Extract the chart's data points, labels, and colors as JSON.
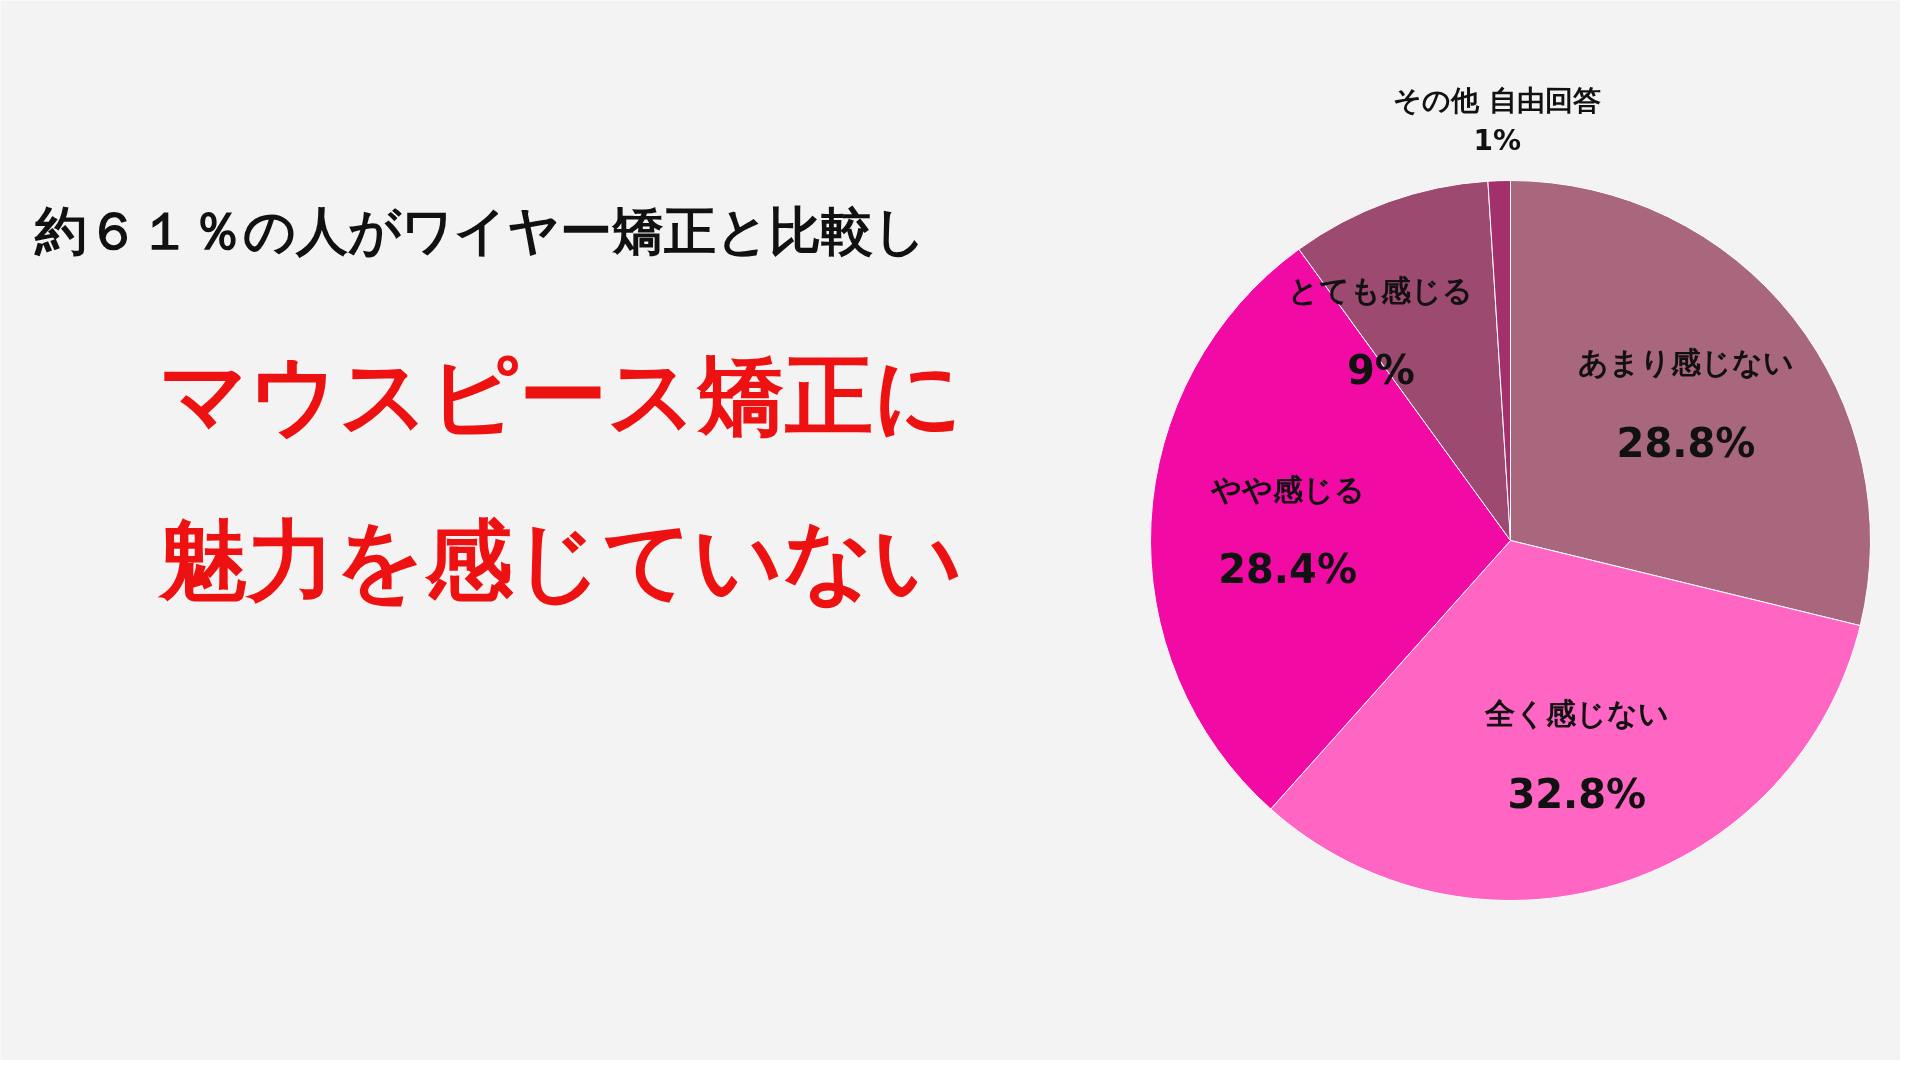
{
  "chart_data": {
    "type": "pie",
    "title": "約６１％の人がワイヤー矯正と比較し",
    "subtitle": "マウスピース矯正に魅力を感じていない",
    "categories": [
      "あまり感じない",
      "全く感じない",
      "やや感じる",
      "とても感じる",
      "その他 自由回答"
    ],
    "values": [
      28.8,
      32.8,
      28.4,
      9,
      1
    ],
    "colors": [
      "#a8677d",
      "#ff66c4",
      "#f20aa5",
      "#9c4a6f",
      "#a3306a"
    ],
    "value_labels": [
      "28.8%",
      "32.8%",
      "28.4%",
      "9%",
      "1%"
    ]
  }
}
